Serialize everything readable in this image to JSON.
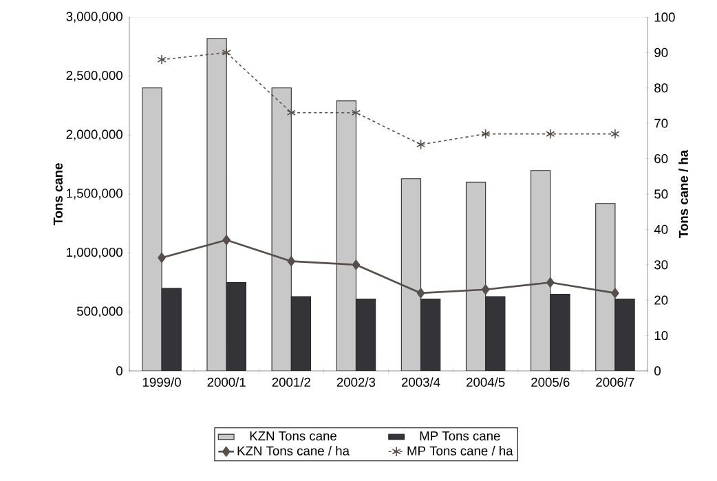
{
  "chart_data": {
    "type": "bar",
    "ylabel": "Tons cane",
    "y2label": "Tons cane / ha",
    "categories": [
      "1999/0",
      "2000/1",
      "2001/2",
      "2002/3",
      "2003/4",
      "2004/5",
      "2005/6",
      "2006/7"
    ],
    "series": [
      {
        "name": "KZN Tons cane",
        "color": "#c8c8c8",
        "values": [
          2400000,
          2820000,
          2400000,
          2290000,
          1630000,
          1600000,
          1700000,
          1420000
        ]
      },
      {
        "name": "MP Tons cane",
        "color": "#333338",
        "values": [
          700000,
          750000,
          630000,
          610000,
          610000,
          630000,
          650000,
          610000
        ]
      },
      {
        "name": "KZN Tons cane / ha",
        "type": "line",
        "axis": "y2",
        "color": "#574f4c",
        "marker": "diamond",
        "line_style": "solid",
        "values": [
          32,
          37,
          31,
          30,
          22,
          23,
          25,
          22
        ]
      },
      {
        "name": "MP Tons cane / ha",
        "type": "line",
        "axis": "y2",
        "color": "#574f4c",
        "marker": "cross",
        "line_style": "dashed",
        "values": [
          88,
          90,
          73,
          73,
          64,
          67,
          67,
          67
        ]
      }
    ],
    "ylim": [
      0,
      3000000
    ],
    "yticks": [
      {
        "value": 0,
        "label": "0"
      },
      {
        "value": 500000,
        "label": "500,000"
      },
      {
        "value": 1000000,
        "label": "1,000,000"
      },
      {
        "value": 1500000,
        "label": "1,500,000"
      },
      {
        "value": 2000000,
        "label": "2,000,000"
      },
      {
        "value": 2500000,
        "label": "2,500,000"
      },
      {
        "value": 3000000,
        "label": "3,000,000"
      }
    ],
    "y2lim": [
      0,
      100
    ],
    "y2ticks": [
      0,
      10,
      20,
      30,
      40,
      50,
      60,
      70,
      80,
      90,
      100
    ],
    "legend": "bottom"
  }
}
